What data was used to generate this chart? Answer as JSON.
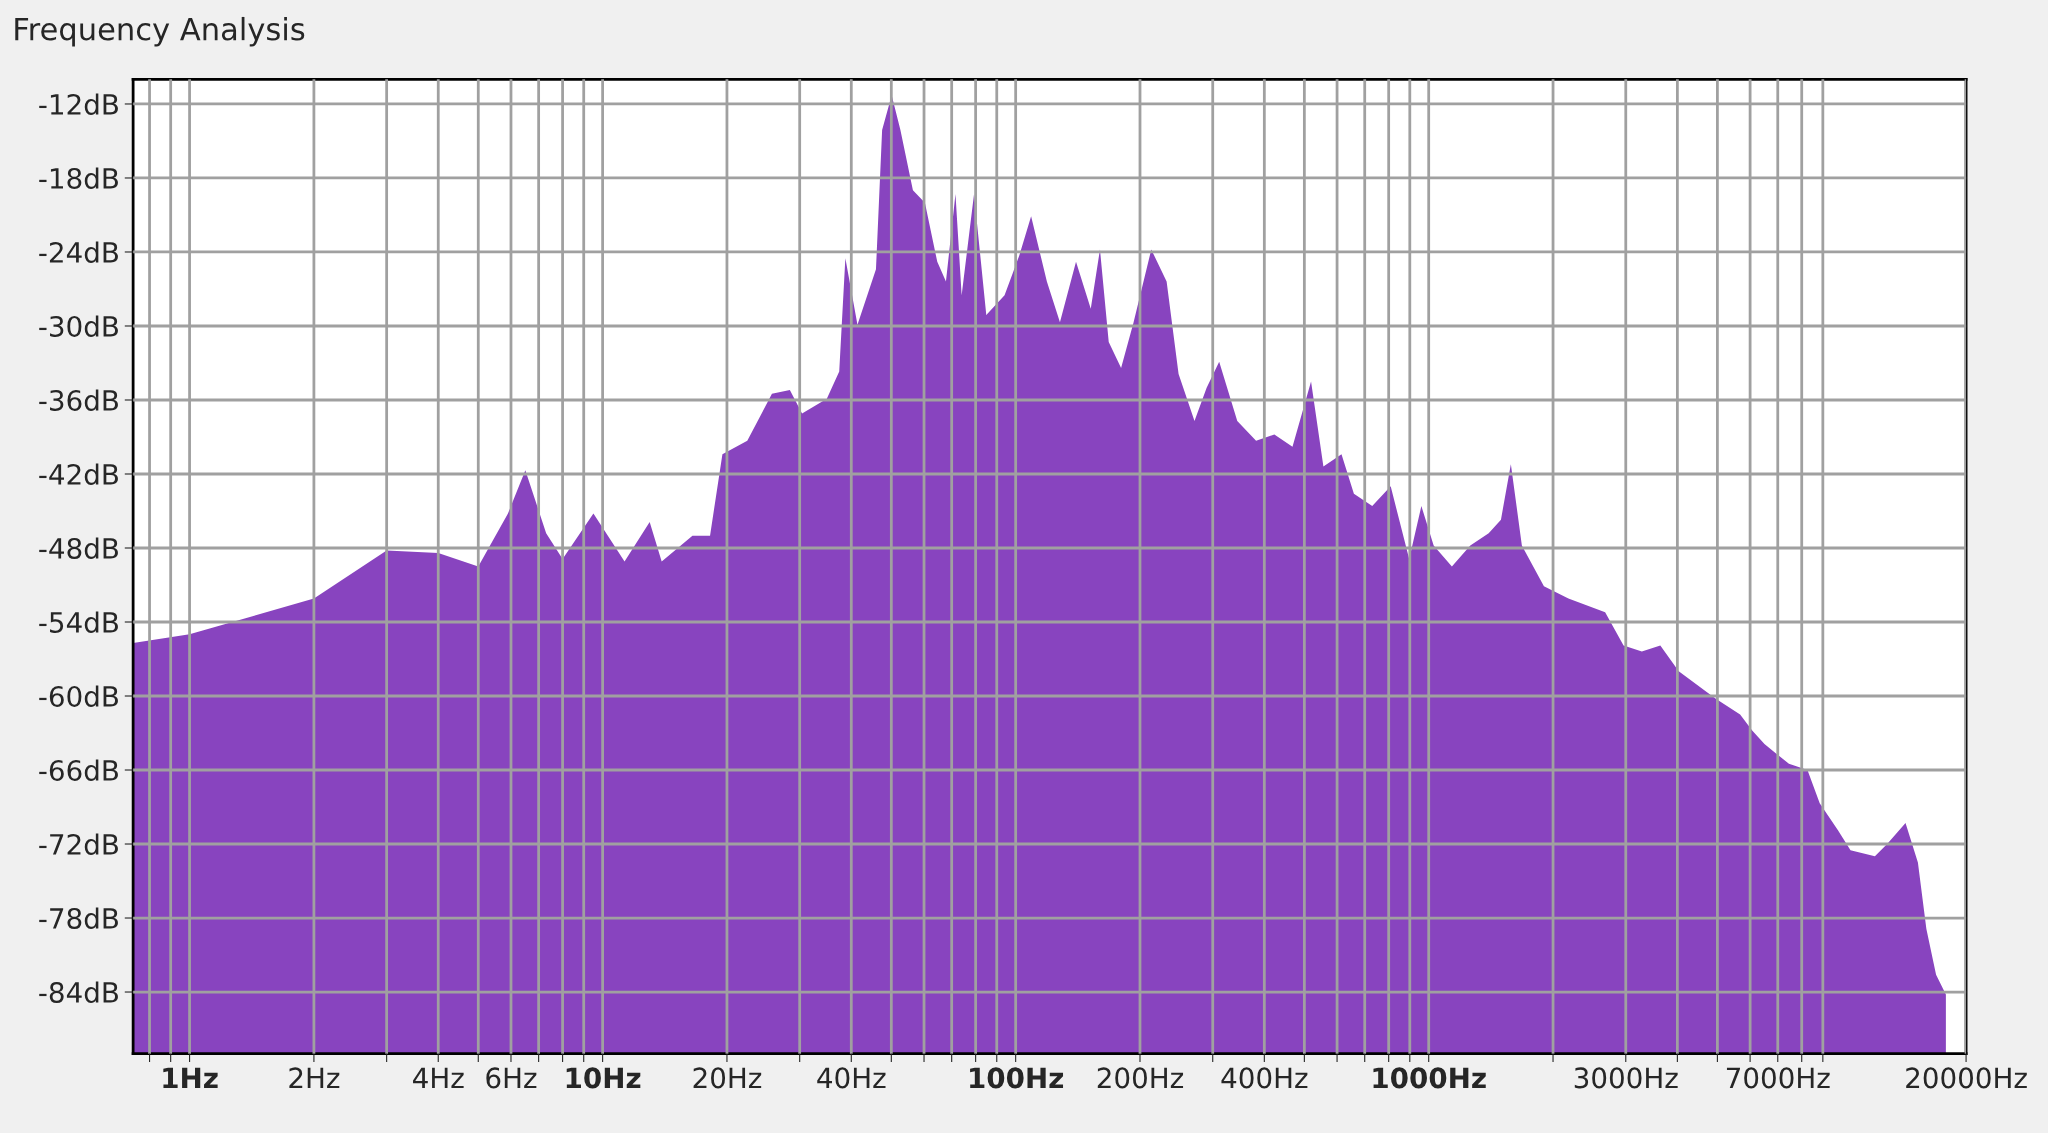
{
  "chart_data": {
    "type": "area",
    "title": "Frequency Analysis",
    "x": [
      0.73,
      1,
      2,
      3.0,
      4,
      5,
      5.9,
      6.5,
      7.3,
      8.0,
      9.5,
      11.3,
      13.0,
      13.9,
      16.5,
      18.2,
      19.5,
      22.4,
      25.7,
      28.4,
      30.4,
      34.9,
      37.4,
      38.7,
      41.4,
      45.9,
      47.5,
      50.1,
      52.6,
      56.4,
      60.3,
      64.6,
      67.8,
      71.5,
      74.0,
      79.3,
      84.9,
      94.0,
      102,
      109,
      119,
      128,
      140,
      152,
      160,
      168,
      180,
      193,
      213,
      232,
      248,
      271,
      290,
      311,
      344,
      382,
      423,
      468,
      519,
      556,
      615,
      659,
      730,
      809,
      897,
      960,
      1028,
      1138,
      1261,
      1397,
      1496,
      1581,
      1681,
      1901,
      2179,
      2674,
      2963,
      3281,
      3637,
      4030,
      4946,
      5675,
      6070,
      6500,
      7450,
      8260,
      8845,
      9800,
      10500,
      12030,
      12880,
      14270,
      15290,
      16030,
      16920,
      17870
    ],
    "series": [
      {
        "color": "#8844bf",
        "values": [
          -55.7,
          -55.0,
          -52.1,
          -48.2,
          -48.4,
          -49.5,
          -45.2,
          -41.7,
          -46.8,
          -48.9,
          -45.2,
          -49.1,
          -45.9,
          -49.1,
          -47.0,
          -47.0,
          -40.4,
          -39.3,
          -35.5,
          -35.2,
          -37.1,
          -35.9,
          -33.7,
          -24.5,
          -29.9,
          -25.4,
          -14.1,
          -11.3,
          -14.1,
          -19.0,
          -20.0,
          -24.8,
          -26.4,
          -19.3,
          -27.5,
          -19.3,
          -29.1,
          -27.5,
          -24.3,
          -21.1,
          -26.4,
          -29.7,
          -24.8,
          -28.6,
          -23.8,
          -31.3,
          -33.4,
          -29.7,
          -23.8,
          -26.4,
          -33.9,
          -37.7,
          -35.0,
          -32.9,
          -37.7,
          -39.3,
          -38.8,
          -39.8,
          -34.5,
          -41.4,
          -40.4,
          -43.6,
          -44.6,
          -43.0,
          -48.9,
          -44.6,
          -47.8,
          -49.5,
          -47.8,
          -46.8,
          -45.7,
          -41.2,
          -47.8,
          -51.1,
          -52.1,
          -53.2,
          -55.9,
          -56.4,
          -55.9,
          -58.0,
          -60.2,
          -61.5,
          -62.8,
          -63.9,
          -65.5,
          -66.0,
          -68.7,
          -70.9,
          -72.5,
          -73.0,
          -72.0,
          -70.3,
          -73.5,
          -78.9,
          -82.6,
          -84.2
        ]
      }
    ],
    "log": "x",
    "xlim": [
      0.73,
      20000
    ],
    "ylim": [
      -89,
      -10
    ],
    "xticks": [
      {
        "value": 0.8,
        "label": null
      },
      {
        "value": 0.9,
        "label": null
      },
      {
        "value": 1,
        "label": "1Hz"
      },
      {
        "value": 2,
        "label": "2Hz"
      },
      {
        "value": 3,
        "label": null
      },
      {
        "value": 4,
        "label": "4Hz"
      },
      {
        "value": 5,
        "label": null
      },
      {
        "value": 6,
        "label": "6Hz"
      },
      {
        "value": 7,
        "label": null
      },
      {
        "value": 8,
        "label": null
      },
      {
        "value": 9,
        "label": null
      },
      {
        "value": 10,
        "label": "10Hz"
      },
      {
        "value": 20,
        "label": "20Hz"
      },
      {
        "value": 30,
        "label": null
      },
      {
        "value": 40,
        "label": "40Hz"
      },
      {
        "value": 50,
        "label": null
      },
      {
        "value": 60,
        "label": null
      },
      {
        "value": 70,
        "label": null
      },
      {
        "value": 80,
        "label": null
      },
      {
        "value": 90,
        "label": null
      },
      {
        "value": 100,
        "label": "100Hz"
      },
      {
        "value": 200,
        "label": "200Hz"
      },
      {
        "value": 300,
        "label": null
      },
      {
        "value": 400,
        "label": "400Hz"
      },
      {
        "value": 500,
        "label": null
      },
      {
        "value": 600,
        "label": null
      },
      {
        "value": 700,
        "label": null
      },
      {
        "value": 800,
        "label": null
      },
      {
        "value": 900,
        "label": null
      },
      {
        "value": 1000,
        "label": "1000Hz"
      },
      {
        "value": 2000,
        "label": null
      },
      {
        "value": 3000,
        "label": "3000Hz"
      },
      {
        "value": 4000,
        "label": null
      },
      {
        "value": 5000,
        "label": null
      },
      {
        "value": 6000,
        "label": null
      },
      {
        "value": 7000,
        "label": "7000Hz"
      },
      {
        "value": 8000,
        "label": null
      },
      {
        "value": 9000,
        "label": null
      },
      {
        "value": 20000,
        "label": "20000Hz"
      }
    ],
    "yticks": [
      {
        "value": -12,
        "label": "-12dB"
      },
      {
        "value": -18,
        "label": "-18dB"
      },
      {
        "value": -24,
        "label": "-24dB"
      },
      {
        "value": -30,
        "label": "-30dB"
      },
      {
        "value": -36,
        "label": "-36dB"
      },
      {
        "value": -42,
        "label": "-42dB"
      },
      {
        "value": -48,
        "label": "-48dB"
      },
      {
        "value": -54,
        "label": "-54dB"
      },
      {
        "value": -60,
        "label": "-60dB"
      },
      {
        "value": -66,
        "label": "-66dB"
      },
      {
        "value": -72,
        "label": "-72dB"
      },
      {
        "value": -78,
        "label": "-78dB"
      },
      {
        "value": -84,
        "label": "-84dB"
      }
    ],
    "grid": true
  }
}
